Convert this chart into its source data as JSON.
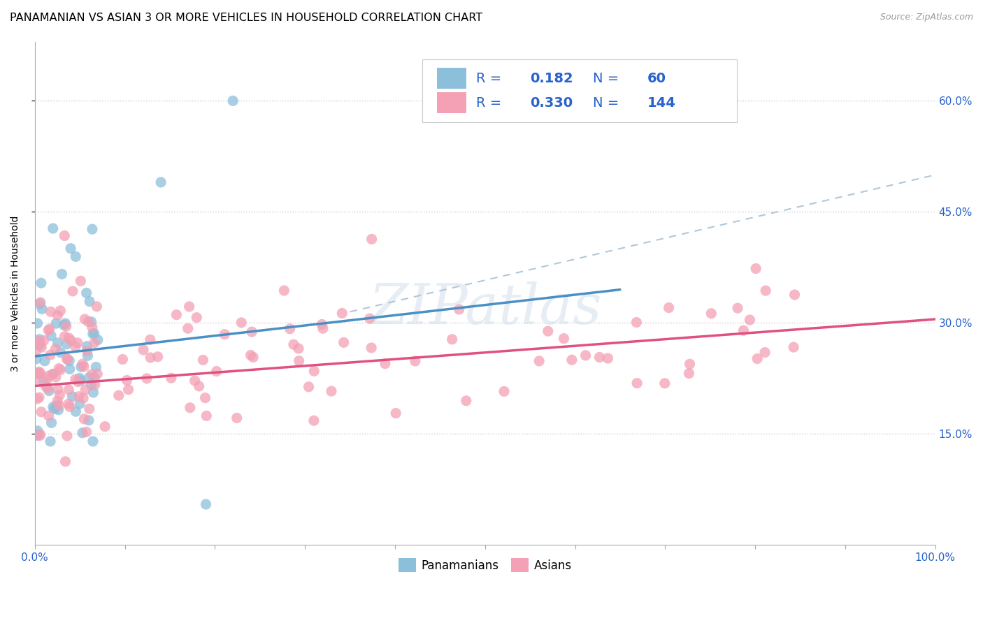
{
  "title": "PANAMANIAN VS ASIAN 3 OR MORE VEHICLES IN HOUSEHOLD CORRELATION CHART",
  "source": "Source: ZipAtlas.com",
  "ylabel": "3 or more Vehicles in Household",
  "watermark": "ZIPatlas",
  "xlim": [
    0.0,
    1.0
  ],
  "ylim": [
    0.0,
    0.68
  ],
  "x_tick_labels_outer": [
    "0.0%",
    "100.0%"
  ],
  "x_tick_positions_outer": [
    0.0,
    1.0
  ],
  "y_ticks": [
    0.15,
    0.3,
    0.45,
    0.6
  ],
  "y_tick_labels": [
    "15.0%",
    "30.0%",
    "45.0%",
    "60.0%"
  ],
  "panamanian_color": "#8bbfda",
  "asian_color": "#f4a0b5",
  "panamanian_trend_color": "#4a90c4",
  "asian_trend_color": "#e05080",
  "dashed_line_color": "#b0c8d8",
  "legend_text_color": "#2962cc",
  "legend_border_color": "#cccccc",
  "R_panama": 0.182,
  "N_panama": 60,
  "R_asian": 0.33,
  "N_asian": 144,
  "background_color": "#ffffff",
  "grid_color": "#cccccc",
  "title_fontsize": 11.5,
  "axis_label_fontsize": 10,
  "tick_fontsize": 11,
  "legend_fontsize": 14,
  "pan_trend_x0": 0.0,
  "pan_trend_x1": 0.65,
  "pan_trend_y0": 0.255,
  "pan_trend_y1": 0.345,
  "dash_trend_x0": 0.35,
  "dash_trend_x1": 1.0,
  "dash_trend_y0": 0.315,
  "dash_trend_y1": 0.5,
  "asian_trend_x0": 0.0,
  "asian_trend_x1": 1.0,
  "asian_trend_y0": 0.215,
  "asian_trend_y1": 0.305
}
